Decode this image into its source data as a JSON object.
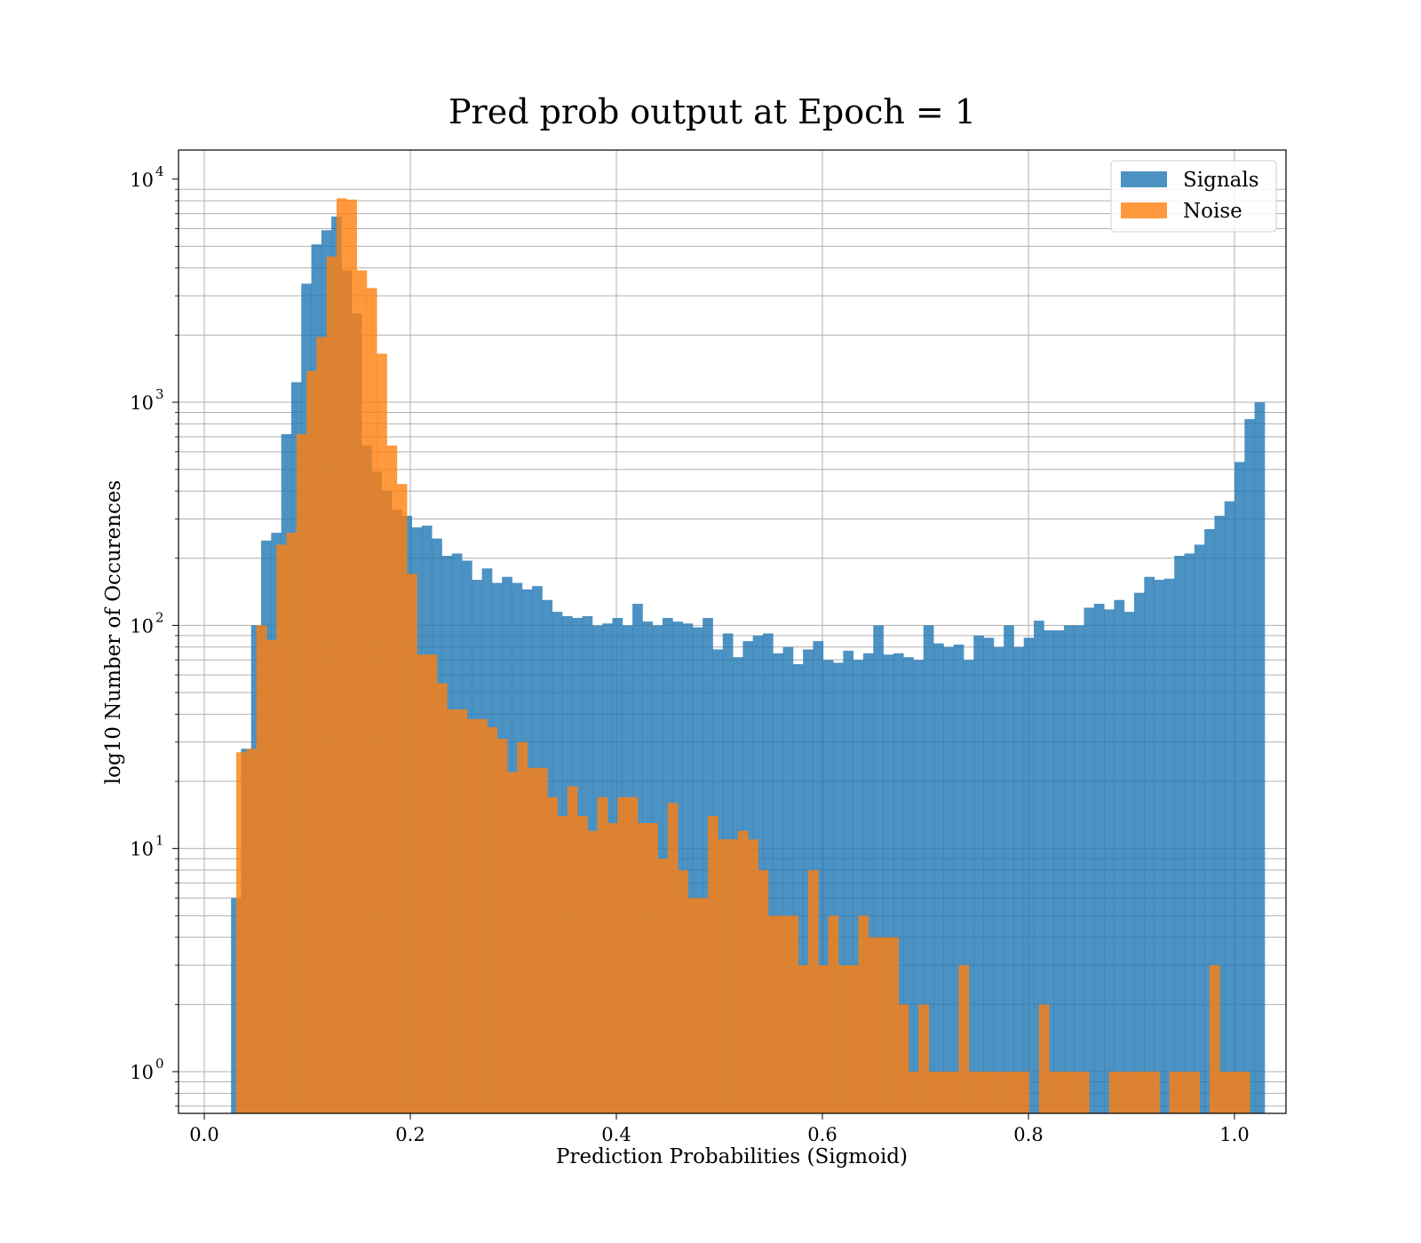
{
  "chart_data": {
    "type": "bar",
    "title": "Pred prob output at Epoch = 1",
    "xlabel": "Prediction Probabilities (Sigmoid)",
    "ylabel": "log10 Number of Occurences",
    "xlim": [
      -0.025,
      1.05
    ],
    "ylim": [
      0.65,
      13500
    ],
    "yscale": "log",
    "x_ticks": [
      "0.0",
      "0.2",
      "0.4",
      "0.6",
      "0.8",
      "1.0"
    ],
    "y_ticks": [
      {
        "base": "10",
        "exp": "0"
      },
      {
        "base": "10",
        "exp": "1"
      },
      {
        "base": "10",
        "exp": "2"
      },
      {
        "base": "10",
        "exp": "3"
      },
      {
        "base": "10",
        "exp": "4"
      }
    ],
    "grid": true,
    "legend_position": "top-right",
    "colors": {
      "Signals": "#1f77b4",
      "Noise": "#ff7f0e"
    },
    "series": [
      {
        "name": "Signals",
        "bin_start": 0.026,
        "bin_width": 0.00974,
        "values": [
          6,
          28,
          100,
          240,
          260,
          720,
          1230,
          3400,
          5100,
          5900,
          6800,
          3900,
          2500,
          640,
          490,
          400,
          330,
          310,
          275,
          280,
          245,
          205,
          210,
          195,
          160,
          180,
          155,
          165,
          155,
          145,
          150,
          130,
          115,
          110,
          108,
          110,
          100,
          102,
          108,
          100,
          125,
          104,
          100,
          108,
          104,
          102,
          98,
          108,
          78,
          92,
          72,
          85,
          90,
          92,
          75,
          80,
          67,
          78,
          85,
          70,
          68,
          77,
          70,
          75,
          100,
          74,
          75,
          72,
          70,
          100,
          83,
          80,
          82,
          70,
          90,
          88,
          80,
          100,
          80,
          88,
          105,
          95,
          95,
          100,
          100,
          120,
          125,
          118,
          130,
          115,
          140,
          165,
          160,
          162,
          205,
          210,
          230,
          270,
          310,
          360,
          540,
          840,
          1000
        ]
      },
      {
        "name": "Noise",
        "bin_start": 0.031,
        "bin_width": 0.00974,
        "values": [
          27,
          28,
          100,
          86,
          230,
          260,
          720,
          1380,
          1960,
          4500,
          8200,
          8100,
          3900,
          3250,
          1650,
          640,
          430,
          170,
          74,
          74,
          55,
          42,
          42,
          38,
          38,
          35,
          31,
          22,
          30,
          23,
          23,
          17,
          14,
          19,
          14,
          12,
          17,
          13,
          17,
          17,
          13,
          13,
          9,
          16,
          8,
          6,
          6,
          14,
          11,
          11,
          12,
          11,
          8,
          5,
          5,
          5,
          3,
          8,
          3,
          5,
          3,
          3,
          5,
          4,
          4,
          4,
          2,
          1,
          2,
          1,
          1,
          1,
          3,
          1,
          1,
          1,
          1,
          1,
          1,
          0,
          2,
          1,
          1,
          1,
          1,
          0,
          0,
          1,
          1,
          1,
          1,
          1,
          0,
          1,
          1,
          1,
          0,
          3,
          1,
          1,
          1,
          0,
          0,
          0,
          0
        ]
      }
    ]
  }
}
